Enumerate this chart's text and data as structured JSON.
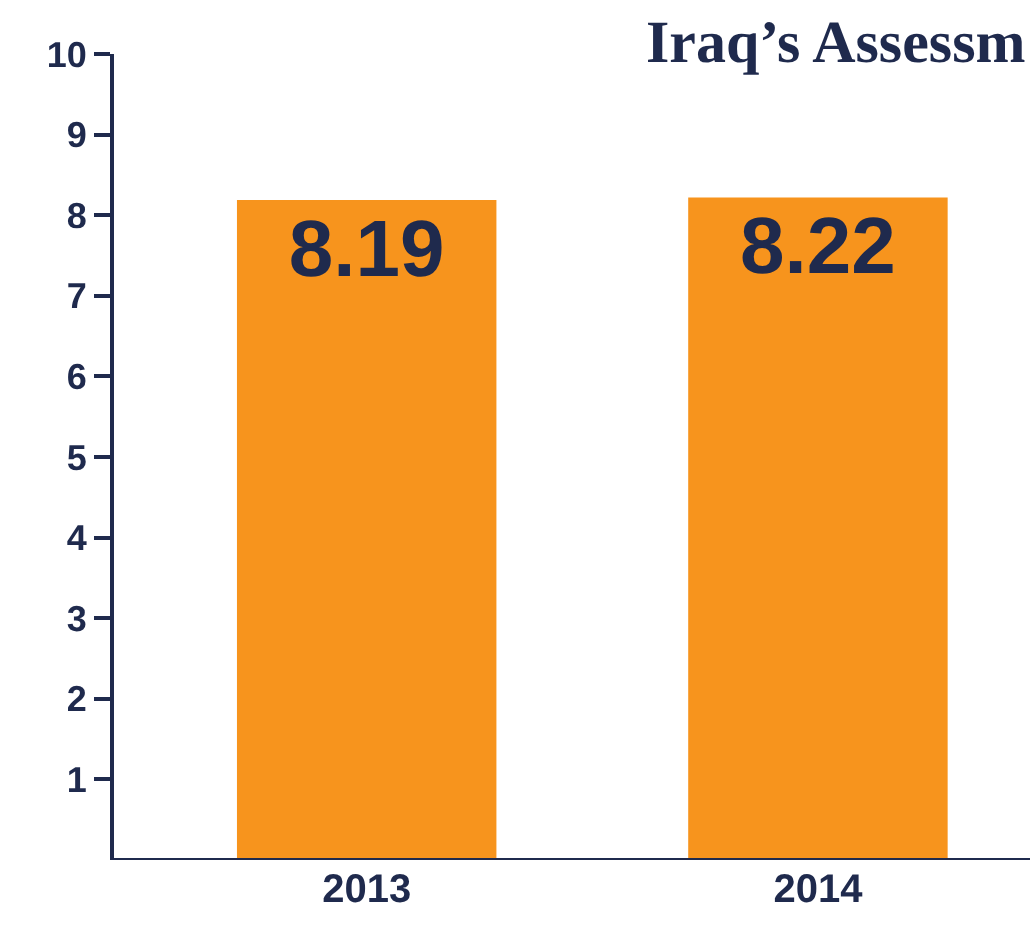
{
  "chart_data": {
    "type": "bar",
    "title": "Iraq’s Assessm",
    "categories": [
      "2013",
      "2014"
    ],
    "series": [
      {
        "color": "#f7941d",
        "values": [
          8.19,
          8.22
        ]
      }
    ],
    "ylim": [
      0,
      10
    ],
    "yticks": [
      1,
      2,
      3,
      4,
      5,
      6,
      7,
      8,
      9,
      10
    ],
    "data_labels": true
  }
}
